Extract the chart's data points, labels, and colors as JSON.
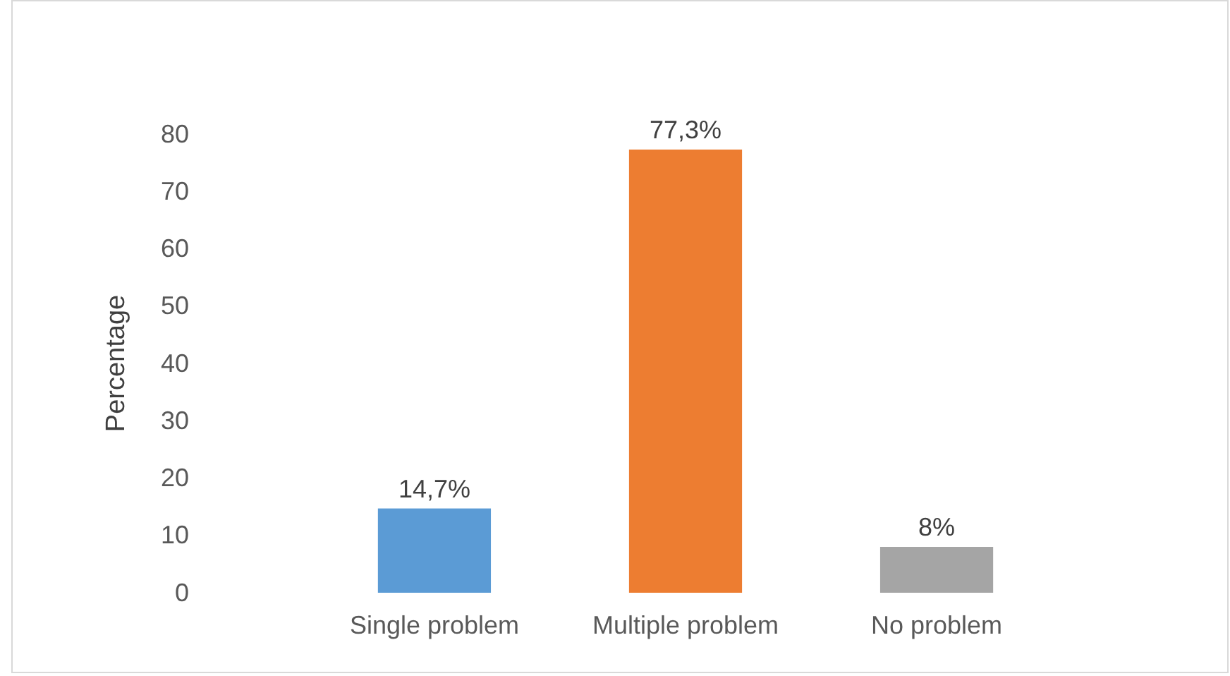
{
  "chart_data": {
    "type": "bar",
    "ylabel": "Percentage",
    "categories": [
      "Single problem",
      "Multiple problem",
      "No problem"
    ],
    "values": [
      14.7,
      77.3,
      8
    ],
    "colors": [
      "#5b9bd5",
      "#ed7d31",
      "#a5a5a5"
    ],
    "value_labels": [
      "14,7%",
      "77,3%",
      "8%"
    ],
    "ylim": [
      0,
      80
    ],
    "yticks": [
      0,
      10,
      20,
      30,
      40,
      50,
      60,
      70,
      80
    ],
    "grid": false
  }
}
